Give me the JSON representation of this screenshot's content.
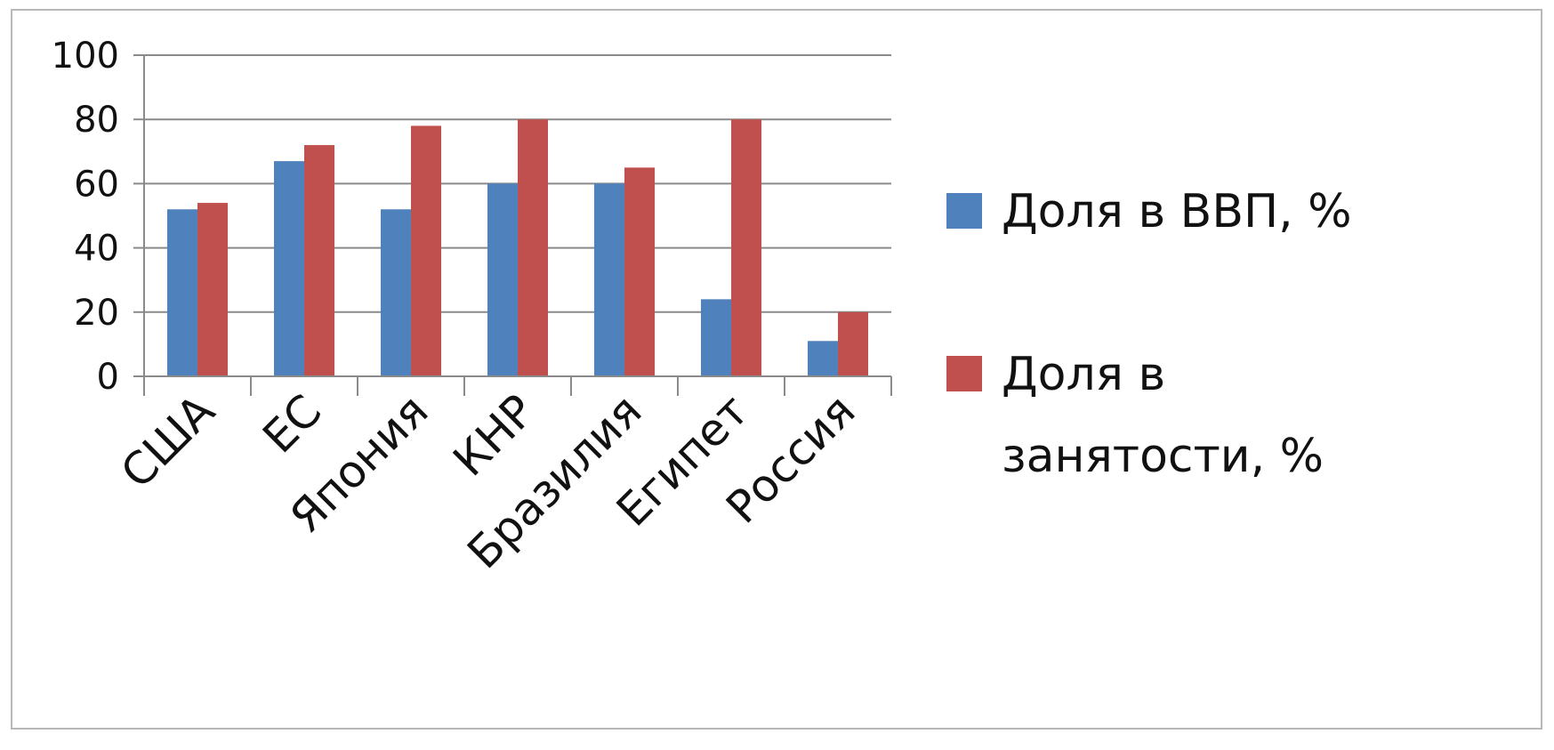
{
  "chart_data": {
    "type": "bar",
    "categories": [
      "США",
      "ЕС",
      "Япония",
      "КНР",
      "Бразилия",
      "Египет",
      "Россия"
    ],
    "series": [
      {
        "name": "Доля в ВВП, %",
        "values": [
          52,
          67,
          52,
          60,
          60,
          24,
          11
        ],
        "color": "#4f81bd"
      },
      {
        "name": "Доля в занятости, %",
        "values": [
          54,
          72,
          78,
          80,
          65,
          80,
          20
        ],
        "color": "#c0504d"
      }
    ],
    "ylim": [
      0,
      100
    ],
    "yticks": [
      0,
      20,
      40,
      60,
      80,
      100
    ],
    "grid": true,
    "legend": "right",
    "xlabel": "",
    "ylabel": "",
    "title": ""
  }
}
